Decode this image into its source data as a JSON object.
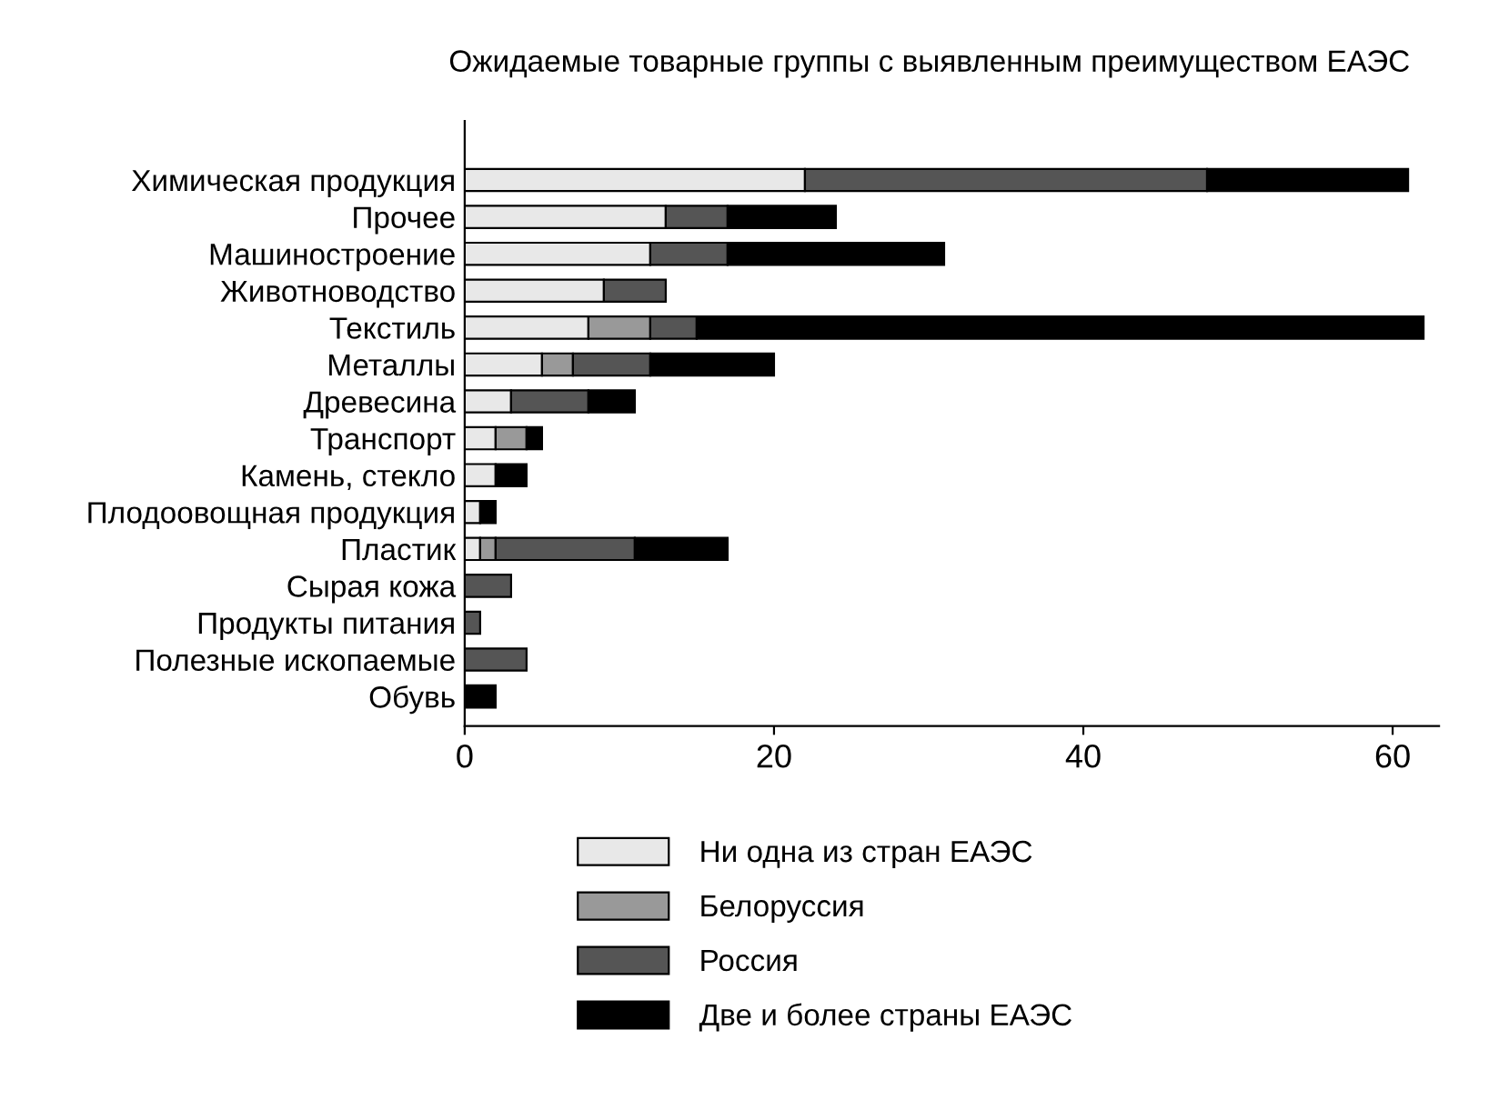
{
  "chart_data": {
    "type": "bar",
    "orientation": "horizontal",
    "stacked": true,
    "title": "Ожидаемые товарные группы с выявленным преимуществом ЕАЭС",
    "categories": [
      "Химическая продукция",
      "Прочее",
      "Машиностроение",
      "Животноводство",
      "Текстиль",
      "Металлы",
      "Древесина",
      "Транспорт",
      "Камень, стекло",
      "Плодоовощная продукция",
      "Пластик",
      "Сырая кожа",
      "Продукты питания",
      "Полезные ископаемые",
      "Обувь"
    ],
    "series": [
      {
        "name": "Ни одна из стран ЕАЭС",
        "color": "#e8e8e8",
        "values": [
          22,
          13,
          12,
          9,
          8,
          5,
          3,
          2,
          2,
          1,
          1,
          0,
          0,
          0,
          0
        ]
      },
      {
        "name": "Белоруссия",
        "color": "#999999",
        "values": [
          0,
          0,
          0,
          0,
          4,
          2,
          0,
          2,
          0,
          0,
          1,
          0,
          0,
          0,
          0
        ]
      },
      {
        "name": "Россия",
        "color": "#555555",
        "values": [
          26,
          4,
          5,
          4,
          3,
          5,
          5,
          0,
          0,
          0,
          9,
          3,
          1,
          4,
          0
        ]
      },
      {
        "name": "Две и более страны ЕАЭС",
        "color": "#000000",
        "values": [
          13,
          7,
          14,
          0,
          47,
          8,
          3,
          1,
          2,
          1,
          6,
          0,
          0,
          0,
          2
        ]
      }
    ],
    "xlim": [
      0,
      63
    ],
    "xticks": [
      0,
      20,
      40,
      60
    ],
    "grid": false,
    "legend": "bottom"
  }
}
